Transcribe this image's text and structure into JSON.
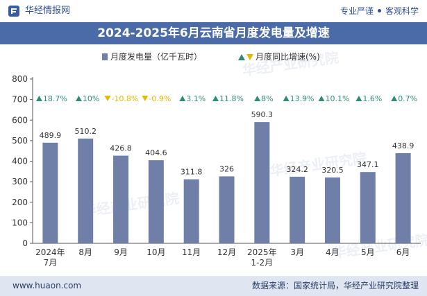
{
  "header": {
    "logo_text": "华经情报网",
    "tagline_left": "专业严谨",
    "tagline_right": "客观科学"
  },
  "title": "2024-2025年6月云南省月度发电量及增速",
  "footer": {
    "website": "www.huaon.com",
    "source": "数据来源：国家统计局，华经产业研究院整理"
  },
  "watermark": "华经产业研究院",
  "chart_data": {
    "type": "bar",
    "categories": [
      "2024年\n7月",
      "8月",
      "9月",
      "10月",
      "11月",
      "12月",
      "2025年\n1-2月",
      "3月",
      "4月",
      "5月",
      "6月"
    ],
    "series": [
      {
        "name": "月度发电量（亿千瓦时）",
        "type": "bar",
        "values": [
          489.9,
          510.2,
          426.8,
          404.6,
          311.8,
          326,
          590.3,
          324.2,
          320.5,
          347.1,
          438.9
        ],
        "value_labels": [
          "489.9",
          "510.2",
          "426.8",
          "404.6",
          "311.8",
          "326",
          "590.3",
          "324.2",
          "320.5",
          "347.1",
          "438.9"
        ],
        "color": "#6f7fa8"
      },
      {
        "name": "月度同比增速(%)",
        "type": "growth-markers",
        "values": [
          18.7,
          10,
          -10.8,
          -0.9,
          3.1,
          11.8,
          8,
          13.9,
          10.1,
          1.6,
          0.7
        ],
        "value_labels": [
          "18.7%",
          "10%",
          "-10.8%",
          "-0.9%",
          "3.1%",
          "11.8%",
          "8%",
          "13.9%",
          "10.1%",
          "1.6%",
          "0.7%"
        ],
        "up_color": "#2e8b78",
        "down_color": "#e6b800"
      }
    ],
    "y_ticks": [
      "0",
      "100",
      "200",
      "300",
      "400",
      "500",
      "600",
      "700",
      "800"
    ],
    "ylim": [
      0,
      800
    ],
    "grid": false,
    "legend_position": "top-center"
  }
}
